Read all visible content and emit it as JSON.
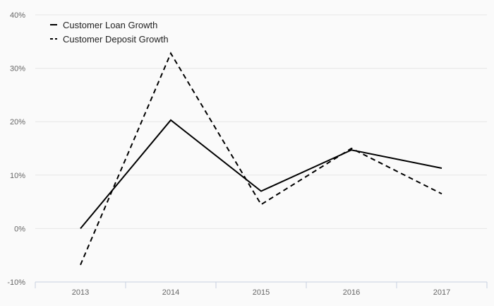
{
  "chart_data": {
    "type": "line",
    "categories": [
      "2013",
      "2014",
      "2015",
      "2016",
      "2017"
    ],
    "series": [
      {
        "name": "Customer Loan Growth",
        "values": [
          0.0,
          20.3,
          7.0,
          14.7,
          11.3
        ],
        "style": "solid",
        "color": "#000000"
      },
      {
        "name": "Customer Deposit Growth",
        "values": [
          -6.8,
          32.8,
          4.5,
          15.0,
          6.5
        ],
        "style": "dashed",
        "color": "#000000"
      }
    ],
    "ylim": [
      -10,
      40
    ],
    "yticks": [
      -10,
      0,
      10,
      20,
      30,
      40
    ],
    "ytick_labels": [
      "-10%",
      "0%",
      "10%",
      "20%",
      "30%",
      "40%"
    ],
    "grid": true,
    "legend_position": "top-left",
    "title": "",
    "xlabel": "",
    "ylabel": ""
  }
}
